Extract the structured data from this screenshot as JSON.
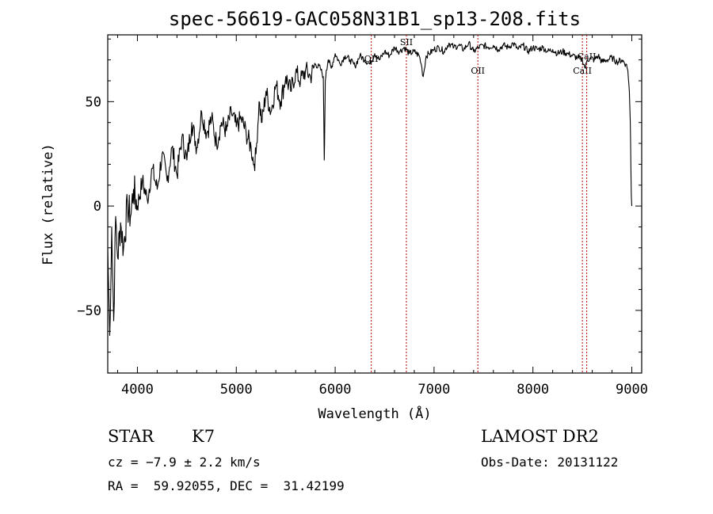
{
  "chart_data": {
    "type": "line",
    "title": "spec-56619-GAC058N31B1_sp13-208.fits",
    "xlabel": "Wavelength (Å)",
    "ylabel": "Flux (relative)",
    "xlim": [
      3700,
      9100
    ],
    "ylim": [
      -80,
      82
    ],
    "xticks": [
      4000,
      5000,
      6000,
      7000,
      8000,
      9000
    ],
    "yticks": [
      -50,
      0,
      50
    ],
    "ytick_labels": [
      "−50",
      "0",
      "50"
    ],
    "grid": false,
    "series": [
      {
        "x": [
          3700,
          3720,
          3740,
          3760,
          3780,
          3800,
          3830,
          3860,
          3900,
          3930,
          3960,
          4000,
          4050,
          4100,
          4150,
          4200,
          4250,
          4300,
          4350,
          4400,
          4450,
          4500,
          4550,
          4600,
          4650,
          4700,
          4750,
          4800,
          4850,
          4900,
          4950,
          5000,
          5050,
          5100,
          5150,
          5180,
          5200,
          5230,
          5260,
          5300,
          5350,
          5400,
          5450,
          5500,
          5550,
          5600,
          5650,
          5700,
          5750,
          5800,
          5850,
          5880,
          5890,
          5895,
          5900,
          5910,
          5930,
          5960,
          6000,
          6050,
          6100,
          6150,
          6200,
          6250,
          6300,
          6350,
          6400,
          6450,
          6500,
          6550,
          6600,
          6650,
          6700,
          6750,
          6800,
          6850,
          6870,
          6890,
          6920,
          6950,
          7000,
          7050,
          7100,
          7150,
          7200,
          7250,
          7300,
          7350,
          7400,
          7450,
          7500,
          7550,
          7600,
          7650,
          7700,
          7750,
          7800,
          7850,
          7900,
          7950,
          8000,
          8050,
          8100,
          8150,
          8200,
          8250,
          8300,
          8350,
          8400,
          8450,
          8500,
          8530,
          8550,
          8580,
          8620,
          8660,
          8700,
          8750,
          8800,
          8850,
          8900,
          8940,
          8960,
          8975,
          8985,
          8990,
          8995,
          9000
        ],
        "y": [
          -20,
          -62,
          -10,
          -55,
          -5,
          -25,
          -8,
          -20,
          0,
          -5,
          8,
          0,
          12,
          3,
          18,
          8,
          25,
          12,
          28,
          15,
          33,
          22,
          40,
          28,
          45,
          35,
          42,
          30,
          40,
          36,
          45,
          38,
          42,
          35,
          28,
          20,
          25,
          50,
          40,
          55,
          45,
          58,
          50,
          62,
          55,
          64,
          60,
          65,
          62,
          68,
          66,
          62,
          22,
          40,
          60,
          65,
          70,
          66,
          73,
          68,
          72,
          70,
          67,
          72,
          70,
          68,
          73,
          70,
          74,
          72,
          76,
          74,
          76,
          73,
          74,
          72,
          68,
          62,
          72,
          73,
          75,
          76,
          74,
          78,
          76,
          77,
          75,
          78,
          74,
          76,
          77,
          76,
          77,
          75,
          77,
          76,
          78,
          75,
          77,
          74,
          76,
          75,
          76,
          74,
          75,
          73,
          74,
          73,
          72,
          71,
          70,
          66,
          70,
          71,
          70,
          72,
          69,
          70,
          71,
          69,
          70,
          68,
          65,
          55,
          40,
          20,
          5,
          0
        ]
      }
    ],
    "line_markers": [
      {
        "label": "OII",
        "x": 6365
      },
      {
        "label": "SII",
        "x": 6720
      },
      {
        "label": "OII",
        "x": 7443
      },
      {
        "label": "CaII",
        "x": 8500
      },
      {
        "label": "CaII",
        "x": 8544
      }
    ]
  },
  "info": {
    "object_class": "STAR",
    "subclass": "K7",
    "redshift": "cz = −7.9 ± 2.2 km/s",
    "coords": "RA =  59.92055, DEC =  31.42199",
    "survey": "LAMOST DR2",
    "obs_date": "Obs-Date: 20131122"
  }
}
